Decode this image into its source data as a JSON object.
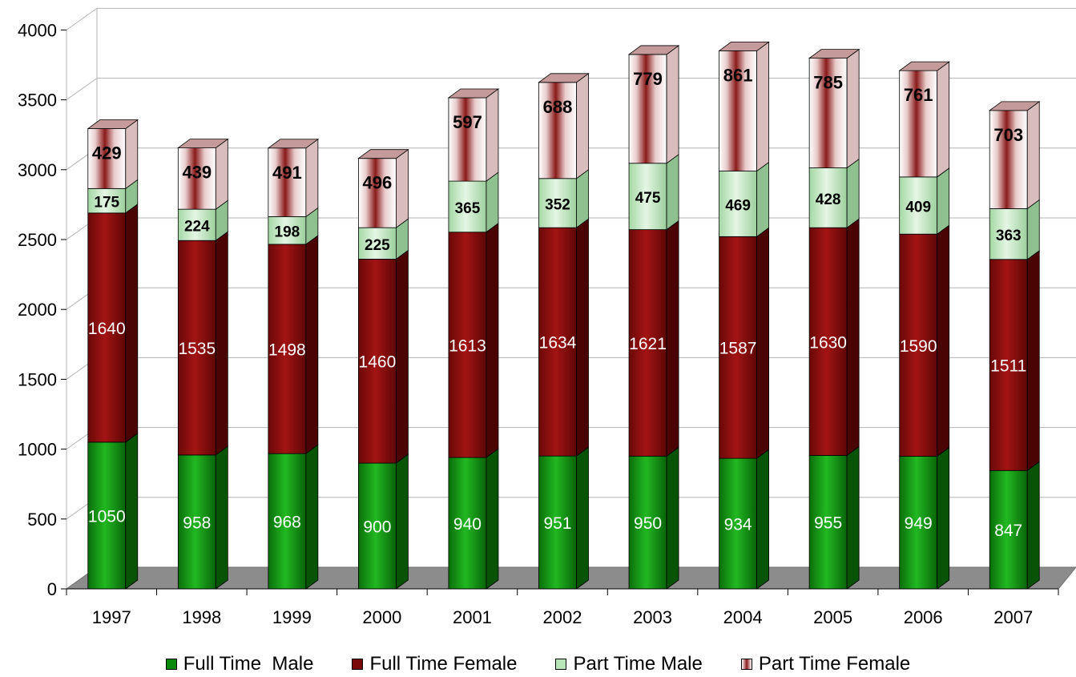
{
  "chart_data": {
    "type": "bar",
    "stacked": true,
    "three_d": true,
    "categories": [
      "1997",
      "1998",
      "1999",
      "2000",
      "2001",
      "2002",
      "2003",
      "2004",
      "2005",
      "2006",
      "2007"
    ],
    "series": [
      {
        "name": "Full Time  Male",
        "color": "#0a7a0a",
        "values": [
          1050,
          958,
          968,
          900,
          940,
          951,
          950,
          934,
          955,
          949,
          847
        ]
      },
      {
        "name": "Full Time Female",
        "color": "#7a0a0a",
        "values": [
          1640,
          1535,
          1498,
          1460,
          1613,
          1634,
          1621,
          1587,
          1630,
          1590,
          1511
        ]
      },
      {
        "name": "Part Time Male",
        "color": "#b8e6b8",
        "values": [
          175,
          224,
          198,
          225,
          365,
          352,
          475,
          469,
          428,
          409,
          363
        ]
      },
      {
        "name": "Part Time Female",
        "color": "#f2e6e6",
        "values": [
          429,
          439,
          491,
          496,
          597,
          688,
          779,
          861,
          785,
          761,
          703
        ]
      }
    ],
    "ylim": [
      0,
      4000
    ],
    "yticks": [
      "0",
      "500",
      "1000",
      "1500",
      "2000",
      "2500",
      "3000",
      "3500",
      "4000"
    ],
    "grid": true,
    "legend_position": "bottom"
  }
}
